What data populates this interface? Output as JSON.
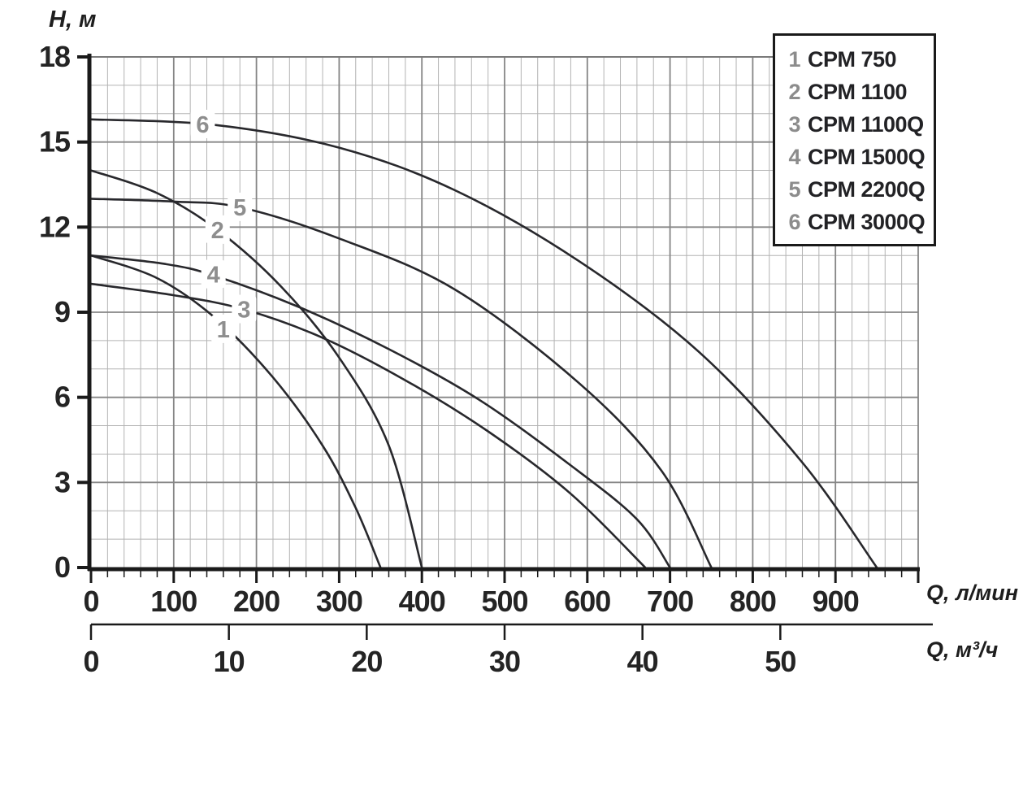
{
  "page": {
    "background": "#ffffff"
  },
  "y_axis": {
    "title": "H, м",
    "ticks": [
      "18",
      "15",
      "12",
      "9",
      "6",
      "3",
      "0"
    ]
  },
  "x_axis_lmin": {
    "unit": "Q, л/мин",
    "ticks": [
      "0",
      "100",
      "200",
      "300",
      "400",
      "500",
      "600",
      "700",
      "800",
      "900"
    ]
  },
  "x_axis_m3h": {
    "unit": "Q, м³/ч",
    "ticks": [
      "0",
      "10",
      "20",
      "30",
      "40",
      "50"
    ]
  },
  "legend": {
    "items": [
      {
        "num": "1",
        "label": "CPM 750"
      },
      {
        "num": "2",
        "label": "CPM 1100"
      },
      {
        "num": "3",
        "label": "CPM 1100Q"
      },
      {
        "num": "4",
        "label": "CPM 1500Q"
      },
      {
        "num": "5",
        "label": "CPM 2200Q"
      },
      {
        "num": "6",
        "label": "CPM 3000Q"
      }
    ]
  },
  "chart_data": {
    "type": "line",
    "title": "Pump head-flow curves CPM series",
    "xlabel": "Q, л/мин",
    "xlabel_secondary": "Q, м³/ч",
    "ylabel": "H, м",
    "xlim": [
      0,
      1000
    ],
    "ylim": [
      0,
      18
    ],
    "x_major_step": 100,
    "x_minor_step": 20,
    "y_major_step": 3,
    "y_minor_step": 1,
    "grid": "minor+major",
    "legend_position": "top-right",
    "series": [
      {
        "id": "1",
        "name": "CPM 750",
        "points": [
          [
            0,
            11.0
          ],
          [
            80,
            10.2
          ],
          [
            150,
            8.8
          ],
          [
            220,
            6.7
          ],
          [
            280,
            4.3
          ],
          [
            320,
            2.1
          ],
          [
            350,
            0
          ]
        ],
        "label_at": [
          160,
          8.4
        ]
      },
      {
        "id": "2",
        "name": "CPM 1100",
        "points": [
          [
            0,
            14.0
          ],
          [
            80,
            13.2
          ],
          [
            153,
            11.9
          ],
          [
            230,
            9.9
          ],
          [
            300,
            7.4
          ],
          [
            360,
            4.3
          ],
          [
            400,
            0
          ]
        ],
        "label_at": [
          153,
          11.9
        ]
      },
      {
        "id": "3",
        "name": "CPM 1100Q",
        "points": [
          [
            0,
            10.0
          ],
          [
            100,
            9.6
          ],
          [
            185,
            9.1
          ],
          [
            280,
            8.1
          ],
          [
            380,
            6.6
          ],
          [
            480,
            4.8
          ],
          [
            580,
            2.6
          ],
          [
            670,
            0
          ]
        ],
        "label_at": [
          185,
          9.1
        ]
      },
      {
        "id": "4",
        "name": "CPM 1500Q",
        "points": [
          [
            0,
            11.0
          ],
          [
            90,
            10.7
          ],
          [
            148,
            10.3
          ],
          [
            250,
            9.2
          ],
          [
            360,
            7.7
          ],
          [
            470,
            5.9
          ],
          [
            580,
            3.6
          ],
          [
            660,
            1.7
          ],
          [
            700,
            0
          ]
        ],
        "label_at": [
          148,
          10.33
        ]
      },
      {
        "id": "5",
        "name": "CPM 2200Q",
        "points": [
          [
            0,
            13.0
          ],
          [
            100,
            12.9
          ],
          [
            180,
            12.7
          ],
          [
            300,
            11.6
          ],
          [
            440,
            9.8
          ],
          [
            590,
            6.5
          ],
          [
            690,
            3.4
          ],
          [
            750,
            0
          ]
        ],
        "label_at": [
          180,
          12.7
        ]
      },
      {
        "id": "6",
        "name": "CPM 3000Q",
        "points": [
          [
            0,
            15.8
          ],
          [
            150,
            15.6
          ],
          [
            300,
            14.8
          ],
          [
            440,
            13.3
          ],
          [
            590,
            10.8
          ],
          [
            735,
            7.6
          ],
          [
            860,
            3.7
          ],
          [
            950,
            0
          ]
        ],
        "label_at": [
          135,
          15.62
        ]
      }
    ]
  },
  "colors": {
    "curve": "#28282c",
    "grid_minor": "#b3b3b3",
    "grid_major": "#868686",
    "frame": "#7a7a7a",
    "axis": "#1a1a1a",
    "curve_number": "#8e8e8e",
    "tick_text": "#242424"
  }
}
